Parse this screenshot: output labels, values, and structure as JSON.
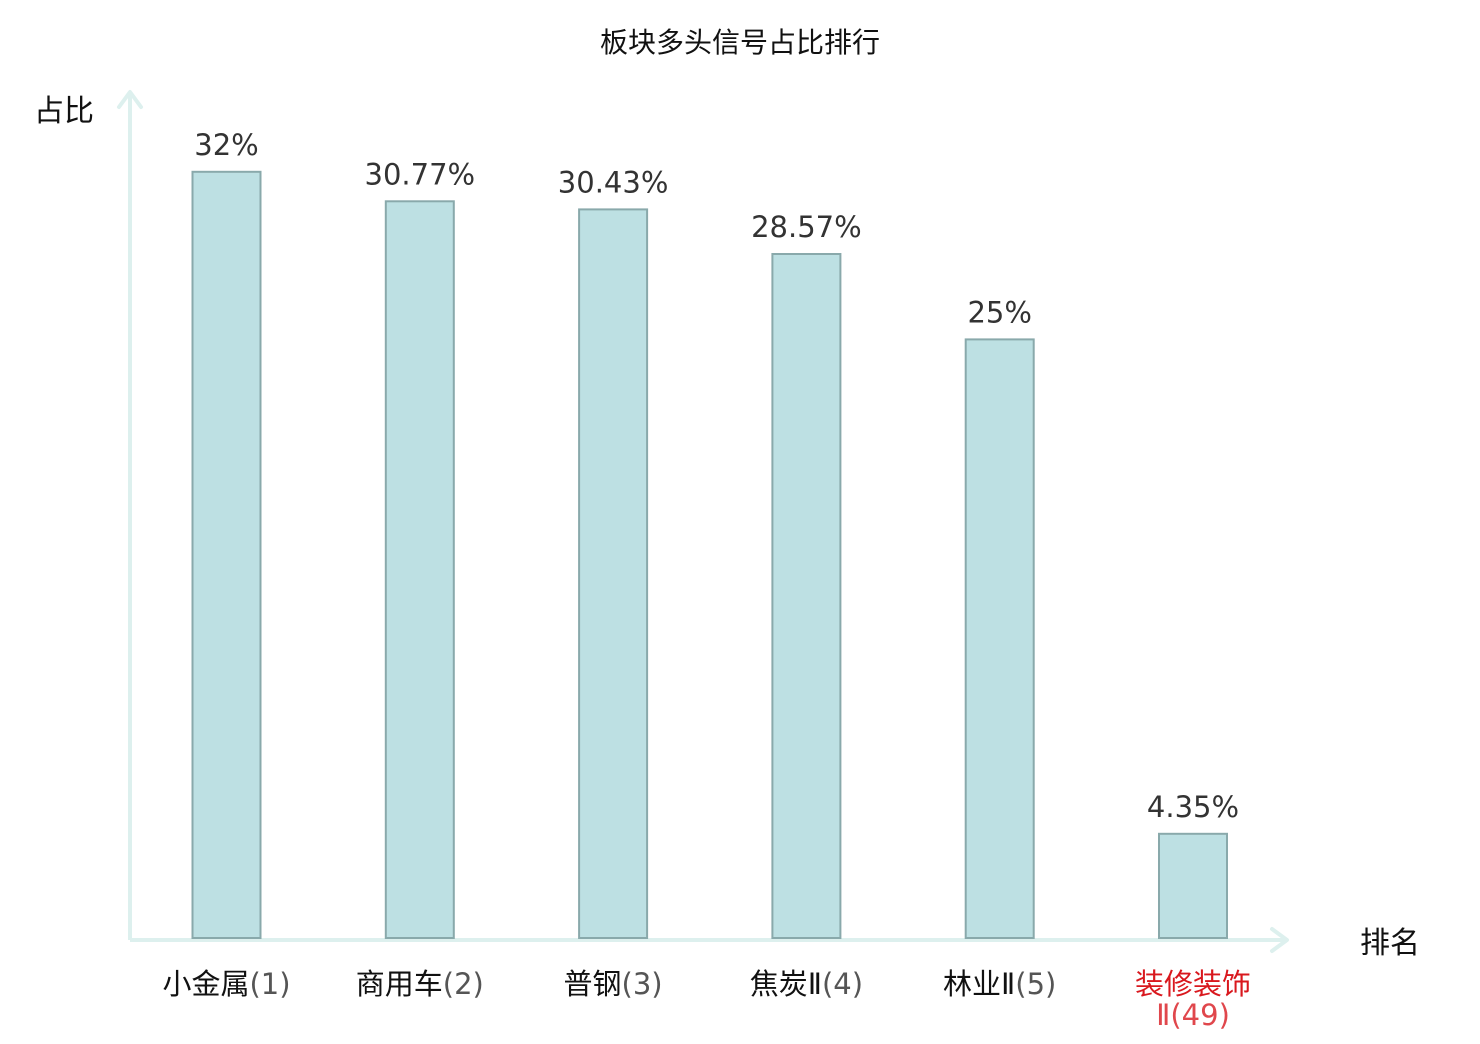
{
  "chart_data": {
    "type": "bar",
    "title": "板块多头信号占比排行",
    "ylabel": "占比",
    "xlabel": "排名",
    "ylim": [
      0,
      35
    ],
    "grid": false,
    "legend": "none",
    "categories": [
      {
        "name": "小金属",
        "rank": "(1)",
        "highlight": false
      },
      {
        "name": "商用车",
        "rank": "(2)",
        "highlight": false
      },
      {
        "name": "普钢",
        "rank": "(3)",
        "highlight": false
      },
      {
        "name": "焦炭Ⅱ",
        "rank": "(4)",
        "highlight": false
      },
      {
        "name": "林业Ⅱ",
        "rank": "(5)",
        "highlight": false
      },
      {
        "name": "装修装饰",
        "rank": "Ⅱ(49)",
        "highlight": true
      }
    ],
    "values": [
      32,
      30.77,
      30.43,
      28.57,
      25,
      4.35
    ],
    "value_labels": [
      "32%",
      "30.77%",
      "30.43%",
      "28.57%",
      "25%",
      "4.35%"
    ]
  },
  "colors": {
    "bar_fill": "#bde0e3",
    "bar_stroke": "#89a9ab",
    "axis": "#ddf0ee",
    "highlight": "#d9181e"
  }
}
